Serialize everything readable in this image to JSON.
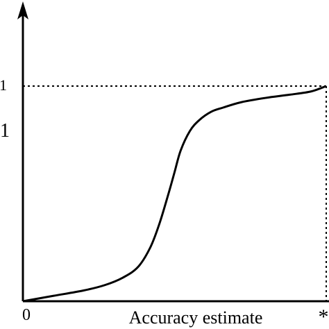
{
  "chart_data": {
    "type": "line",
    "xlabel": "Accuracy estimate",
    "ylabel": "",
    "x_ticks": [
      "0",
      "*"
    ],
    "y_ticks": [
      "1",
      "1"
    ],
    "xlim": [
      0,
      1
    ],
    "ylim": [
      0,
      1
    ],
    "grid": false,
    "series": [
      {
        "x": [
          0.0,
          0.1,
          0.2,
          0.27,
          0.33,
          0.38,
          0.42,
          0.45,
          0.48,
          0.5,
          0.52,
          0.55,
          0.58,
          0.62,
          0.66,
          0.72,
          0.8,
          0.88,
          0.95,
          1.0
        ],
        "y": [
          0.0,
          0.025,
          0.05,
          0.075,
          0.11,
          0.16,
          0.25,
          0.36,
          0.5,
          0.6,
          0.7,
          0.79,
          0.84,
          0.88,
          0.9,
          0.925,
          0.945,
          0.96,
          0.975,
          1.0
        ]
      }
    ],
    "reference_lines": [
      {
        "type": "horizontal",
        "y": 1.0,
        "style": "dotted"
      },
      {
        "type": "vertical",
        "x": 1.0,
        "style": "dotted"
      }
    ],
    "colors": {
      "line": "#000000",
      "axes": "#000000",
      "background": "#ffffff"
    }
  }
}
